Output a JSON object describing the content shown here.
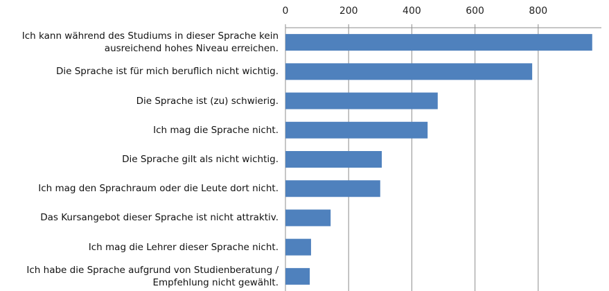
{
  "chart_data": {
    "type": "bar",
    "orientation": "horizontal",
    "categories": [
      "Ich kann während des Studiums in dieser Sprache kein ausreichend hohes Niveau erreichen.",
      "Die Sprache ist für mich beruflich nicht wichtig.",
      "Die Sprache ist (zu) schwierig.",
      "Ich mag die Sprache nicht.",
      "Die Sprache gilt als nicht wichtig.",
      "Ich mag den Sprachraum oder die Leute dort nicht.",
      "Das Kursangebot dieser Sprache ist nicht attraktiv.",
      "Ich mag die Lehrer dieser Sprache nicht.",
      "Ich habe die Sprache aufgrund von Studienberatung / Empfehlung nicht gewählt."
    ],
    "values": [
      971,
      781,
      482,
      450,
      305,
      300,
      143,
      81,
      77
    ],
    "color": "#4f81bd",
    "xlim": [
      0,
      1000
    ],
    "xticks": [
      0,
      200,
      400,
      600,
      800
    ],
    "grid": true
  }
}
